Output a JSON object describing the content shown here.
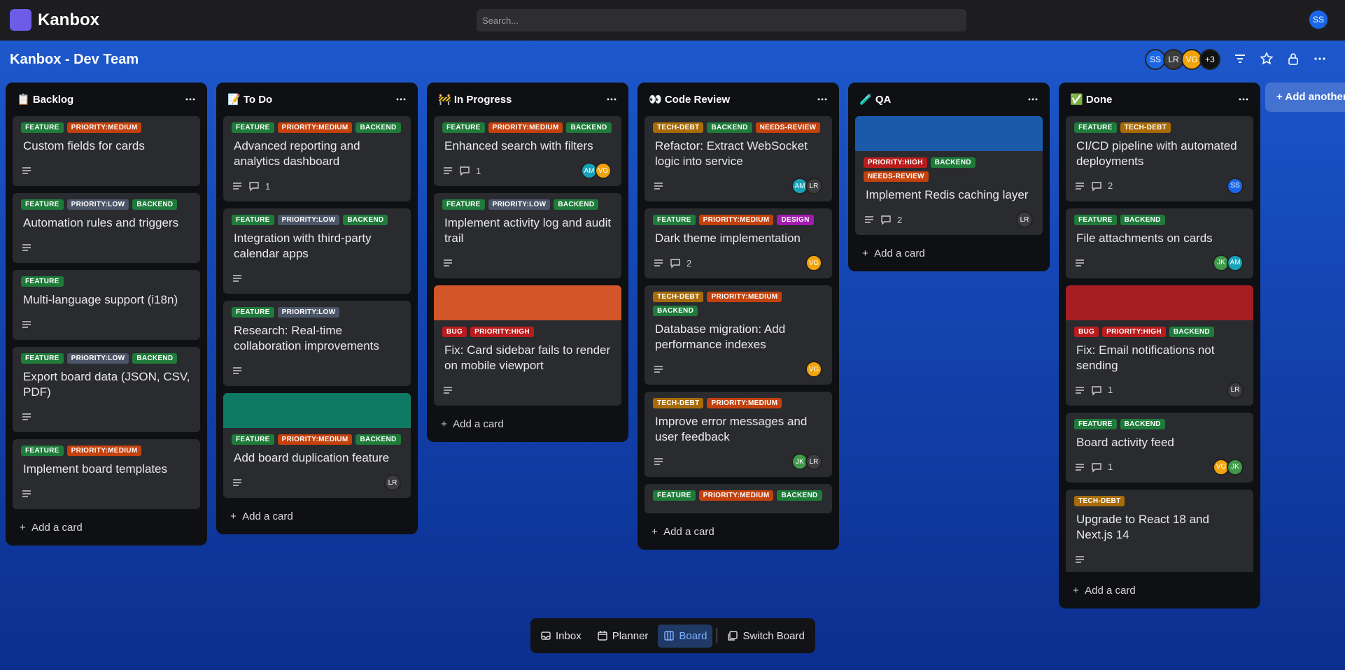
{
  "header": {
    "logo": "Kanbox",
    "search_placeholder": "Search...",
    "user": "SS"
  },
  "board": {
    "title": "Kanbox - Dev Team",
    "members": [
      "SS",
      "LR",
      "VG"
    ],
    "more_members": "+3",
    "add_list": "Add another list"
  },
  "label_colors": {
    "FEATURE": "#1e7b3a",
    "PRIORITY:MEDIUM": "#c2410c",
    "PRIORITY:LOW": "#4b5567",
    "BACKEND": "#1e7b3a",
    "TECH-DEBT": "#a86b08",
    "NEEDS-REVIEW": "#c2410c",
    "DESIGN": "#a21caf",
    "BUG": "#b91c1c",
    "PRIORITY:HIGH": "#b91c1c"
  },
  "avatar_colors": {
    "SS": "#1a66e8",
    "LR": "#3d3d40",
    "VG": "#f0a30a",
    "AM": "#17a2b8",
    "JK": "#3f9a4a"
  },
  "lists": [
    {
      "title": "📋 Backlog",
      "add_card": "Add a card",
      "cards": [
        {
          "labels": [
            "FEATURE",
            "PRIORITY:MEDIUM"
          ],
          "title": "Custom fields for cards"
        },
        {
          "labels": [
            "FEATURE",
            "PRIORITY:LOW",
            "BACKEND"
          ],
          "title": "Automation rules and triggers"
        },
        {
          "labels": [
            "FEATURE"
          ],
          "title": "Multi-language support (i18n)"
        },
        {
          "labels": [
            "FEATURE",
            "PRIORITY:LOW",
            "BACKEND"
          ],
          "title": "Export board data (JSON, CSV, PDF)"
        },
        {
          "labels": [
            "FEATURE",
            "PRIORITY:MEDIUM"
          ],
          "title": "Implement board templates"
        }
      ]
    },
    {
      "title": "📝 To Do",
      "add_card": "Add a card",
      "cards": [
        {
          "labels": [
            "FEATURE",
            "PRIORITY:MEDIUM",
            "BACKEND"
          ],
          "title": "Advanced reporting and analytics dashboard",
          "comments": 1
        },
        {
          "labels": [
            "FEATURE",
            "PRIORITY:LOW",
            "BACKEND"
          ],
          "title": "Integration with third-party calendar apps"
        },
        {
          "labels": [
            "FEATURE",
            "PRIORITY:LOW"
          ],
          "title": "Research: Real-time collaboration improvements"
        },
        {
          "cover": "#0f7a63",
          "labels": [
            "FEATURE",
            "PRIORITY:MEDIUM",
            "BACKEND"
          ],
          "title": "Add board duplication feature",
          "members": [
            "LR"
          ]
        }
      ]
    },
    {
      "title": "🚧 In Progress",
      "add_card": "Add a card",
      "cards": [
        {
          "labels": [
            "FEATURE",
            "PRIORITY:MEDIUM",
            "BACKEND"
          ],
          "title": "Enhanced search with filters",
          "comments": 1,
          "members": [
            "AM",
            "VG"
          ]
        },
        {
          "labels": [
            "FEATURE",
            "PRIORITY:LOW",
            "BACKEND"
          ],
          "title": "Implement activity log and audit trail"
        },
        {
          "cover": "#d2562a",
          "labels": [
            "BUG",
            "PRIORITY:HIGH"
          ],
          "title": "Fix: Card sidebar fails to render on mobile viewport"
        }
      ]
    },
    {
      "title": "👀 Code Review",
      "add_card": "Add a card",
      "cards": [
        {
          "labels": [
            "TECH-DEBT",
            "BACKEND",
            "NEEDS-REVIEW"
          ],
          "title": "Refactor: Extract WebSocket logic into service",
          "members": [
            "AM",
            "LR"
          ]
        },
        {
          "labels": [
            "FEATURE",
            "PRIORITY:MEDIUM",
            "DESIGN"
          ],
          "title": "Dark theme implementation",
          "comments": 2,
          "members": [
            "VG"
          ]
        },
        {
          "labels": [
            "TECH-DEBT",
            "PRIORITY:MEDIUM",
            "BACKEND"
          ],
          "title": "Database migration: Add performance indexes",
          "members": [
            "VG"
          ]
        },
        {
          "labels": [
            "TECH-DEBT",
            "PRIORITY:MEDIUM"
          ],
          "title": "Improve error messages and user feedback",
          "members": [
            "JK",
            "LR"
          ]
        },
        {
          "labels": [
            "FEATURE",
            "PRIORITY:MEDIUM",
            "BACKEND"
          ]
        }
      ]
    },
    {
      "title": "🧪 QA",
      "add_card": "Add a card",
      "cards": [
        {
          "cover": "#1a5aa8",
          "labels": [
            "PRIORITY:HIGH",
            "BACKEND",
            "NEEDS-REVIEW"
          ],
          "title": "Implement Redis caching layer",
          "comments": 2,
          "members": [
            "LR"
          ]
        }
      ]
    },
    {
      "title": "✅ Done",
      "add_card": "Add a card",
      "cards": [
        {
          "labels": [
            "FEATURE",
            "TECH-DEBT"
          ],
          "title": "CI/CD pipeline with automated deployments",
          "comments": 2,
          "members": [
            "SS"
          ]
        },
        {
          "labels": [
            "FEATURE",
            "BACKEND"
          ],
          "title": "File attachments on cards",
          "members": [
            "JK",
            "AM"
          ]
        },
        {
          "cover": "#a61e22",
          "labels": [
            "BUG",
            "PRIORITY:HIGH",
            "BACKEND"
          ],
          "title": "Fix: Email notifications not sending",
          "comments": 1,
          "members": [
            "LR"
          ]
        },
        {
          "labels": [
            "FEATURE",
            "BACKEND"
          ],
          "title": "Board activity feed",
          "comments": 1,
          "members": [
            "VG",
            "JK"
          ]
        },
        {
          "labels": [
            "TECH-DEBT"
          ],
          "title": "Upgrade to React 18 and Next.js 14"
        }
      ]
    }
  ],
  "nav": {
    "items": [
      "Inbox",
      "Planner",
      "Board",
      "Switch Board"
    ],
    "active": 2
  }
}
